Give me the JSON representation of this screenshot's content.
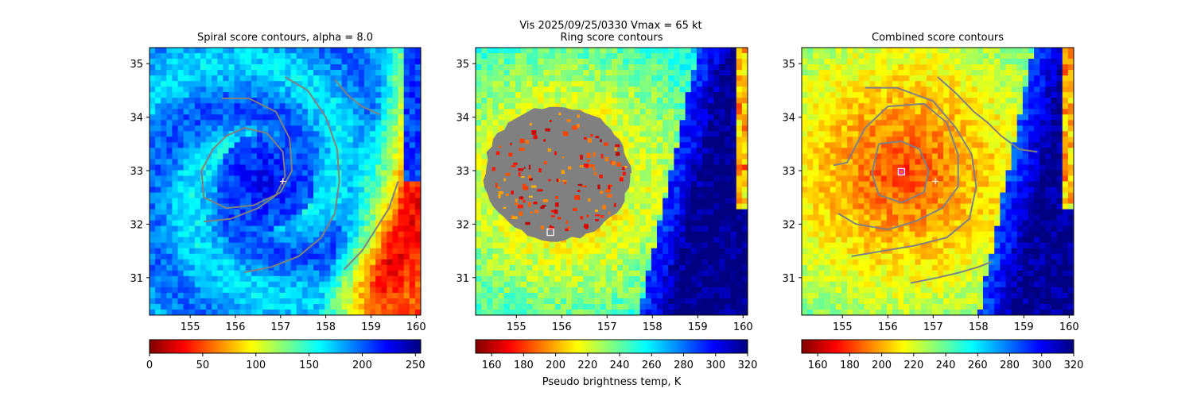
{
  "figure": {
    "suptitle_line1": "Vis  2025/09/25/0330    Vmax = 65 kt"
  },
  "colormap": {
    "name": "jet",
    "stops": [
      "#800000",
      "#ff0000",
      "#ff8000",
      "#ffff00",
      "#80ff80",
      "#00ffff",
      "#0080ff",
      "#0000ff",
      "#000080"
    ]
  },
  "chart_data": [
    {
      "type": "heatmap",
      "title": "Spiral score contours, alpha =  8.0",
      "xlabel": "",
      "ylabel": "",
      "xlim": [
        154.1,
        160.1
      ],
      "ylim": [
        30.3,
        35.3
      ],
      "xticks": [
        155,
        156,
        157,
        158,
        159,
        160
      ],
      "yticks": [
        31,
        32,
        33,
        34,
        35
      ],
      "center_marker": {
        "lon": 157.05,
        "lat": 32.8,
        "symbol": "+"
      },
      "colorbar": {
        "vmin": 0,
        "vmax": 255,
        "ticks": [
          0,
          50,
          100,
          150,
          200,
          250
        ],
        "label": ""
      },
      "contour_color": "#808080",
      "contours": [
        [
          [
            155.7,
            34.35
          ],
          [
            156.3,
            34.35
          ],
          [
            156.9,
            34.1
          ],
          [
            157.2,
            33.6
          ],
          [
            157.25,
            33.0
          ],
          [
            157.0,
            32.6
          ],
          [
            156.5,
            32.3
          ],
          [
            155.9,
            32.1
          ],
          [
            155.3,
            32.05
          ]
        ],
        [
          [
            155.8,
            33.65
          ],
          [
            156.2,
            33.8
          ],
          [
            156.7,
            33.7
          ],
          [
            157.05,
            33.35
          ],
          [
            157.1,
            32.9
          ],
          [
            156.9,
            32.55
          ],
          [
            156.4,
            32.35
          ],
          [
            155.8,
            32.3
          ],
          [
            155.3,
            32.5
          ],
          [
            155.25,
            33.0
          ],
          [
            155.5,
            33.4
          ],
          [
            155.8,
            33.65
          ]
        ],
        [
          [
            157.1,
            34.75
          ],
          [
            157.6,
            34.5
          ],
          [
            158.0,
            34.0
          ],
          [
            158.25,
            33.4
          ],
          [
            158.3,
            32.8
          ],
          [
            158.2,
            32.2
          ],
          [
            157.9,
            31.75
          ],
          [
            157.4,
            31.4
          ],
          [
            156.8,
            31.2
          ],
          [
            156.2,
            31.1
          ]
        ],
        [
          [
            158.2,
            34.7
          ],
          [
            158.5,
            34.4
          ],
          [
            158.8,
            34.2
          ],
          [
            159.2,
            34.05
          ]
        ],
        [
          [
            158.4,
            31.15
          ],
          [
            158.8,
            31.5
          ],
          [
            159.1,
            31.9
          ],
          [
            159.4,
            32.3
          ],
          [
            159.6,
            32.8
          ]
        ]
      ]
    },
    {
      "type": "heatmap",
      "title": "Ring score contours",
      "xlabel": "Pseudo brightness temp, K",
      "ylabel": "",
      "xlim": [
        154.1,
        160.1
      ],
      "ylim": [
        30.3,
        35.3
      ],
      "xticks": [
        155,
        156,
        157,
        158,
        159,
        160
      ],
      "yticks": [
        31,
        32,
        33,
        34,
        35
      ],
      "center_marker": {
        "lon": 155.75,
        "lat": 31.85,
        "symbol": "square"
      },
      "ring_region": {
        "center_lon": 155.9,
        "center_lat": 32.95,
        "radius_lon": 1.6,
        "radius_lat": 1.25
      },
      "colorbar": {
        "vmin": 150,
        "vmax": 320,
        "ticks": [
          160,
          180,
          200,
          220,
          240,
          260,
          280,
          300,
          320
        ],
        "label": "Pseudo brightness temp, K"
      },
      "contour_color": "#808080",
      "contours": []
    },
    {
      "type": "heatmap",
      "title": "Combined score contours",
      "xlabel": "",
      "ylabel": "",
      "xlim": [
        154.1,
        160.1
      ],
      "ylim": [
        30.3,
        35.3
      ],
      "xticks": [
        155,
        156,
        157,
        158,
        159,
        160
      ],
      "yticks": [
        31,
        32,
        33,
        34,
        35
      ],
      "center_marker": {
        "lon": 157.05,
        "lat": 32.8,
        "symbol": "+"
      },
      "secondary_marker": {
        "lon": 156.3,
        "lat": 32.98,
        "symbol": "square"
      },
      "colorbar": {
        "vmin": 150,
        "vmax": 320,
        "ticks": [
          160,
          180,
          200,
          220,
          240,
          260,
          280,
          300,
          320
        ],
        "label": ""
      },
      "contour_color": "#808080",
      "contours": [
        [
          [
            155.8,
            33.5
          ],
          [
            156.3,
            33.55
          ],
          [
            156.7,
            33.4
          ],
          [
            156.9,
            33.0
          ],
          [
            156.8,
            32.6
          ],
          [
            156.3,
            32.4
          ],
          [
            155.8,
            32.55
          ],
          [
            155.65,
            32.95
          ],
          [
            155.8,
            33.5
          ]
        ],
        [
          [
            154.8,
            33.1
          ],
          [
            155.1,
            33.15
          ],
          [
            155.5,
            33.8
          ],
          [
            156.0,
            34.2
          ],
          [
            156.8,
            34.25
          ],
          [
            157.3,
            33.9
          ],
          [
            157.55,
            33.3
          ],
          [
            157.55,
            32.7
          ],
          [
            157.2,
            32.3
          ],
          [
            156.6,
            32.05
          ],
          [
            156.0,
            31.9
          ],
          [
            155.3,
            32.0
          ],
          [
            154.9,
            32.2
          ]
        ],
        [
          [
            155.5,
            34.55
          ],
          [
            156.2,
            34.55
          ],
          [
            157.0,
            34.3
          ],
          [
            157.5,
            33.8
          ],
          [
            157.85,
            33.3
          ],
          [
            157.95,
            32.7
          ],
          [
            157.8,
            32.1
          ],
          [
            157.3,
            31.75
          ],
          [
            156.6,
            31.6
          ],
          [
            155.9,
            31.5
          ],
          [
            155.2,
            31.4
          ]
        ],
        [
          [
            157.1,
            34.75
          ],
          [
            157.5,
            34.45
          ],
          [
            157.9,
            34.1
          ],
          [
            158.2,
            33.9
          ],
          [
            158.5,
            33.65
          ],
          [
            158.9,
            33.4
          ],
          [
            159.3,
            33.35
          ]
        ],
        [
          [
            156.5,
            30.9
          ],
          [
            157.1,
            31.0
          ],
          [
            157.6,
            31.1
          ],
          [
            158.0,
            31.2
          ],
          [
            158.3,
            31.3
          ]
        ]
      ]
    }
  ]
}
